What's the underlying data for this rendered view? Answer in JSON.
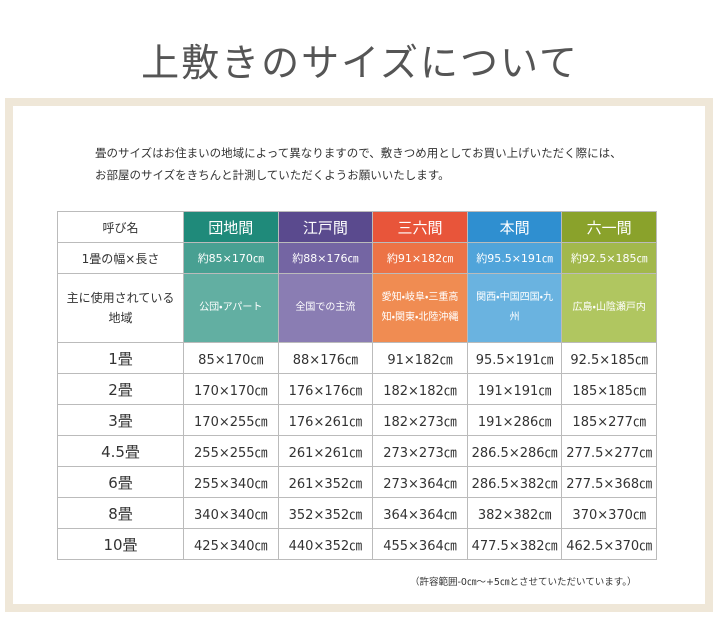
{
  "title": "上敷きのサイズについて",
  "intro": [
    "畳のサイズはお住まいの地域によって異なりますので、敷きつめ用としてお買い上げいただく際には、",
    "お部屋のサイズをきちんと計測していただくようお願いいたします。"
  ],
  "table": {
    "header": [
      "呼び名",
      "団地間",
      "江戸間",
      "三六間",
      "本間",
      "六一間"
    ],
    "rows": [
      [
        "1畳の幅×長さ",
        "約85×170㎝",
        "約88×176㎝",
        "約91×182㎝",
        "約95.5×191㎝",
        "約92.5×185㎝"
      ],
      [
        "主に使用されている地域",
        "公団・アパート",
        "全国での主流",
        "愛知・岐阜・三重高知・関東・北陸沖縄",
        "関西・中国四国・九州",
        "広島・山陰瀬戸内"
      ],
      [
        "1畳",
        "85×170㎝",
        "88×176㎝",
        "91×182㎝",
        "95.5×191㎝",
        "92.5×185㎝"
      ],
      [
        "2畳",
        "170×170㎝",
        "176×176㎝",
        "182×182㎝",
        "191×191㎝",
        "185×185㎝"
      ],
      [
        "3畳",
        "170×255㎝",
        "176×261㎝",
        "182×273㎝",
        "191×286㎝",
        "185×277㎝"
      ],
      [
        "4.5畳",
        "255×255㎝",
        "261×261㎝",
        "273×273㎝",
        "286.5×286㎝",
        "277.5×277㎝"
      ],
      [
        "6畳",
        "255×340㎝",
        "261×352㎝",
        "273×364㎝",
        "286.5×382㎝",
        "277.5×368㎝"
      ],
      [
        "8畳",
        "340×340㎝",
        "352×352㎝",
        "364×364㎝",
        "382×382㎝",
        "370×370㎝"
      ],
      [
        "10畳",
        "425×340㎝",
        "440×352㎝",
        "455×364㎝",
        "477.5×382㎝",
        "462.5×370㎝"
      ]
    ]
  },
  "note": "（許容範囲-0㎝～+5㎝とさせていただいています。）"
}
